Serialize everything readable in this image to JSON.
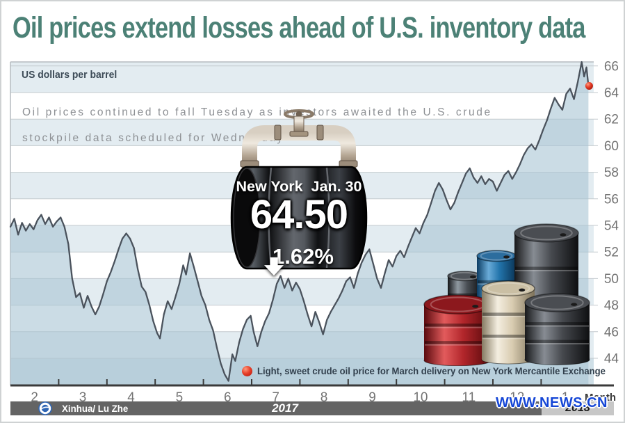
{
  "title": "Oil prices extend losses ahead of U.S. inventory data",
  "unit_label": "US dollars per barrel",
  "description": {
    "line1": "Oil prices continued to fall Tuesday as investors awaited the U.S. crude",
    "line2": "stockpile data scheduled for Wednesday"
  },
  "badge": {
    "market": "New York",
    "date": "Jan. 30",
    "price": "64.50",
    "change": "1.62%",
    "direction": "down"
  },
  "legend": {
    "text": "Light, sweet crude oil price for March delivery on New York Mercantile Exchange"
  },
  "footer": {
    "credit": "Xinhua/ Lu Zhe",
    "year_left": "2017",
    "year_right": "2018",
    "website": "WWW.NEWS.CN"
  },
  "colors": {
    "title": "#4c8176",
    "band": "#e3ecf1",
    "legend_strip": "#cfdfe7",
    "area_fill": "rgba(168,197,212,0.6)",
    "line": "#4a525c",
    "axis": "#3a3a3a",
    "grid": "#c3c9cd",
    "plot_border": "#b6bcc0",
    "tick_label": "#737373",
    "accent_red": "#d7281d"
  },
  "illustrations": {
    "badge_icon": "oil-drum-with-pipe-valve",
    "cluster_icon": "rising-stack-of-oil-barrels",
    "cluster_barrel_colors": [
      "gray",
      "blue",
      "dark-gray",
      "red",
      "cream",
      "dark-gray"
    ]
  },
  "chart_data": {
    "type": "line",
    "title": "Oil prices extend losses ahead of U.S. inventory data",
    "ylabel": "US dollars per barrel",
    "series_name": "Light, sweet crude oil price for March delivery on New York Mercantile Exchange",
    "x_axis": {
      "label": "Month",
      "tick_labels": [
        "2",
        "3",
        "4",
        "5",
        "6",
        "7",
        "8",
        "9",
        "10",
        "11",
        "12",
        "1"
      ],
      "note": "x values in points are months elapsed since Feb 1, 2017 (0 = Feb 2017, 11.98 = Jan 30, 2018)"
    },
    "y_axis": {
      "ticks": [
        44,
        46,
        48,
        50,
        52,
        54,
        56,
        58,
        60,
        62,
        64,
        66
      ],
      "range": [
        42,
        67
      ]
    },
    "end_annotation": {
      "market": "New York",
      "date": "Jan. 30",
      "value": 64.5,
      "change_pct": -1.62
    },
    "points": [
      [
        0.0,
        53.9
      ],
      [
        0.08,
        54.5
      ],
      [
        0.16,
        53.3
      ],
      [
        0.24,
        54.2
      ],
      [
        0.32,
        53.6
      ],
      [
        0.4,
        54.1
      ],
      [
        0.48,
        53.7
      ],
      [
        0.56,
        54.4
      ],
      [
        0.64,
        54.8
      ],
      [
        0.72,
        54.1
      ],
      [
        0.8,
        54.6
      ],
      [
        0.88,
        53.9
      ],
      [
        0.96,
        54.3
      ],
      [
        1.04,
        54.6
      ],
      [
        1.12,
        53.9
      ],
      [
        1.2,
        52.6
      ],
      [
        1.28,
        50.0
      ],
      [
        1.36,
        48.6
      ],
      [
        1.44,
        48.9
      ],
      [
        1.52,
        47.8
      ],
      [
        1.6,
        48.7
      ],
      [
        1.68,
        47.9
      ],
      [
        1.76,
        47.3
      ],
      [
        1.84,
        47.9
      ],
      [
        1.92,
        48.8
      ],
      [
        2.0,
        49.8
      ],
      [
        2.08,
        50.5
      ],
      [
        2.16,
        51.3
      ],
      [
        2.24,
        52.2
      ],
      [
        2.32,
        53.0
      ],
      [
        2.4,
        53.4
      ],
      [
        2.48,
        53.0
      ],
      [
        2.56,
        52.3
      ],
      [
        2.64,
        50.7
      ],
      [
        2.72,
        49.4
      ],
      [
        2.8,
        49.0
      ],
      [
        2.88,
        48.0
      ],
      [
        2.96,
        46.8
      ],
      [
        3.04,
        45.9
      ],
      [
        3.1,
        45.5
      ],
      [
        3.18,
        47.3
      ],
      [
        3.26,
        48.3
      ],
      [
        3.34,
        47.7
      ],
      [
        3.42,
        48.6
      ],
      [
        3.5,
        49.6
      ],
      [
        3.58,
        51.0
      ],
      [
        3.64,
        50.3
      ],
      [
        3.72,
        51.9
      ],
      [
        3.8,
        50.9
      ],
      [
        3.88,
        49.8
      ],
      [
        3.96,
        48.7
      ],
      [
        4.04,
        48.0
      ],
      [
        4.12,
        46.9
      ],
      [
        4.2,
        46.1
      ],
      [
        4.28,
        44.8
      ],
      [
        4.36,
        43.6
      ],
      [
        4.44,
        42.8
      ],
      [
        4.52,
        42.3
      ],
      [
        4.6,
        44.3
      ],
      [
        4.66,
        43.8
      ],
      [
        4.74,
        45.2
      ],
      [
        4.82,
        46.2
      ],
      [
        4.9,
        46.9
      ],
      [
        4.98,
        47.2
      ],
      [
        5.04,
        46.0
      ],
      [
        5.12,
        44.9
      ],
      [
        5.2,
        46.0
      ],
      [
        5.28,
        46.8
      ],
      [
        5.36,
        47.4
      ],
      [
        5.44,
        48.4
      ],
      [
        5.52,
        49.6
      ],
      [
        5.6,
        50.2
      ],
      [
        5.68,
        49.3
      ],
      [
        5.76,
        50.0
      ],
      [
        5.84,
        49.1
      ],
      [
        5.92,
        49.7
      ],
      [
        6.0,
        49.2
      ],
      [
        6.08,
        48.3
      ],
      [
        6.16,
        47.3
      ],
      [
        6.24,
        46.4
      ],
      [
        6.32,
        47.5
      ],
      [
        6.4,
        46.7
      ],
      [
        6.48,
        45.8
      ],
      [
        6.56,
        46.9
      ],
      [
        6.64,
        47.5
      ],
      [
        6.72,
        48.0
      ],
      [
        6.8,
        48.5
      ],
      [
        6.88,
        49.1
      ],
      [
        6.96,
        49.8
      ],
      [
        7.04,
        50.1
      ],
      [
        7.12,
        49.3
      ],
      [
        7.2,
        50.4
      ],
      [
        7.28,
        51.2
      ],
      [
        7.36,
        51.8
      ],
      [
        7.44,
        52.2
      ],
      [
        7.52,
        51.1
      ],
      [
        7.6,
        50.0
      ],
      [
        7.68,
        49.3
      ],
      [
        7.76,
        50.4
      ],
      [
        7.84,
        51.4
      ],
      [
        7.92,
        50.9
      ],
      [
        8.0,
        51.7
      ],
      [
        8.08,
        52.1
      ],
      [
        8.16,
        51.6
      ],
      [
        8.24,
        52.4
      ],
      [
        8.32,
        53.1
      ],
      [
        8.4,
        53.8
      ],
      [
        8.48,
        53.4
      ],
      [
        8.56,
        54.2
      ],
      [
        8.64,
        54.8
      ],
      [
        8.72,
        55.7
      ],
      [
        8.8,
        56.6
      ],
      [
        8.88,
        57.2
      ],
      [
        8.96,
        56.7
      ],
      [
        9.04,
        55.9
      ],
      [
        9.12,
        55.2
      ],
      [
        9.2,
        55.7
      ],
      [
        9.28,
        56.5
      ],
      [
        9.36,
        57.2
      ],
      [
        9.44,
        57.9
      ],
      [
        9.52,
        58.3
      ],
      [
        9.6,
        57.6
      ],
      [
        9.68,
        57.2
      ],
      [
        9.76,
        57.7
      ],
      [
        9.84,
        57.1
      ],
      [
        9.92,
        57.5
      ],
      [
        10.0,
        57.3
      ],
      [
        10.08,
        56.6
      ],
      [
        10.16,
        57.2
      ],
      [
        10.24,
        57.8
      ],
      [
        10.32,
        58.1
      ],
      [
        10.4,
        57.5
      ],
      [
        10.48,
        58.0
      ],
      [
        10.56,
        58.6
      ],
      [
        10.64,
        59.3
      ],
      [
        10.72,
        59.8
      ],
      [
        10.8,
        60.1
      ],
      [
        10.88,
        59.7
      ],
      [
        10.96,
        60.4
      ],
      [
        11.04,
        61.2
      ],
      [
        11.12,
        61.9
      ],
      [
        11.2,
        62.8
      ],
      [
        11.28,
        63.6
      ],
      [
        11.36,
        63.1
      ],
      [
        11.44,
        62.7
      ],
      [
        11.52,
        63.9
      ],
      [
        11.6,
        64.3
      ],
      [
        11.68,
        63.5
      ],
      [
        11.76,
        64.8
      ],
      [
        11.84,
        66.3
      ],
      [
        11.89,
        65.2
      ],
      [
        11.94,
        65.9
      ],
      [
        11.98,
        64.5
      ]
    ]
  }
}
